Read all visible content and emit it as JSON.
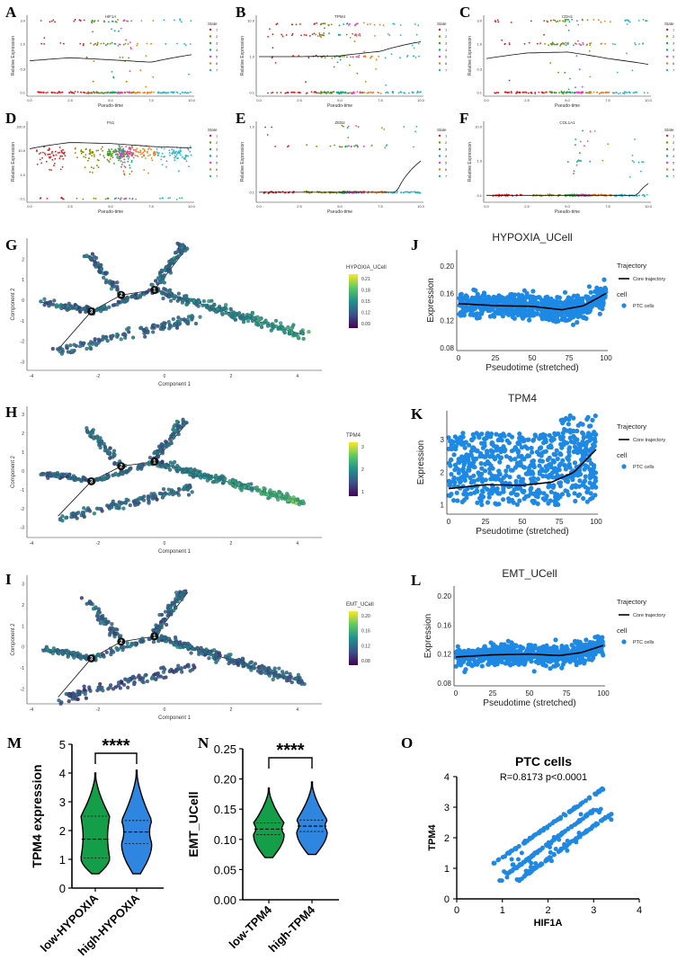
{
  "panels": {
    "A": {
      "letter": "A",
      "title": "HIF1A",
      "xlabel": "Pseudo-time",
      "ylabel": "Relative Expression",
      "yticks": [
        "3.0",
        "1.0",
        "0.3",
        "0.1"
      ],
      "xticks": [
        "0.0",
        "2.5",
        "5.0",
        "7.5",
        "10.0"
      ]
    },
    "B": {
      "letter": "B",
      "title": "TPM4",
      "xlabel": "Pseudo-time",
      "ylabel": "Relative Expression",
      "yticks": [
        "10.0",
        "1.0",
        "0.1"
      ],
      "xticks": [
        "0.0",
        "2.5",
        "5.0",
        "7.5",
        "10.0"
      ]
    },
    "C": {
      "letter": "C",
      "title": "CDH1",
      "xlabel": "Pseudo-time",
      "ylabel": "Relative Expression",
      "yticks": [
        "3.0",
        "1.0",
        "0.3",
        "0.1"
      ],
      "xticks": [
        "0.0",
        "2.5",
        "5.0",
        "7.5",
        "10.0"
      ]
    },
    "D": {
      "letter": "D",
      "title": "FN1",
      "xlabel": "Pseudo-time",
      "ylabel": "Relative Expression",
      "yticks": [
        "100.0",
        "10.0",
        "1.0",
        "0.1"
      ],
      "xticks": [
        "0.0",
        "2.5",
        "5.0",
        "7.5",
        "10.0"
      ]
    },
    "E": {
      "letter": "E",
      "title": "ZEB2",
      "xlabel": "Pseudo-time",
      "ylabel": "Relative Expression",
      "yticks": [
        "1.0",
        "0.1"
      ],
      "xticks": [
        "0.0",
        "2.5",
        "5.0",
        "7.5",
        "10.0"
      ]
    },
    "F": {
      "letter": "F",
      "title": "COL1A1",
      "xlabel": "Pseudo-time",
      "ylabel": "Relative Expression",
      "yticks": [
        "10.0",
        "1.0",
        "0.1"
      ],
      "xticks": [
        "0.0",
        "2.5",
        "5.0",
        "7.5",
        "10.0"
      ]
    },
    "G": {
      "letter": "G",
      "xlabel": "Component 1",
      "ylabel": "Component 2",
      "legend_title": "HYPOXIA_UCell",
      "legend_ticks": [
        "0.21",
        "0.18",
        "0.15",
        "0.12",
        "0.09"
      ],
      "xticks": [
        "-4",
        "-2",
        "0",
        "2",
        "4"
      ],
      "yticks": [
        "2",
        "1",
        "0",
        "-1",
        "-2",
        "-3"
      ]
    },
    "H": {
      "letter": "H",
      "xlabel": "Component 1",
      "ylabel": "Component 2",
      "legend_title": "TPM4",
      "legend_ticks": [
        "3",
        "2",
        "1"
      ],
      "xticks": [
        "-4",
        "-2",
        "0",
        "2",
        "4"
      ],
      "yticks": [
        "3",
        "2",
        "1",
        "0",
        "-1",
        "-2",
        "-3"
      ]
    },
    "I": {
      "letter": "I",
      "xlabel": "Component 1",
      "ylabel": "Component 2",
      "legend_title": "EMT_UCell",
      "legend_ticks": [
        "0.20",
        "0.16",
        "0.12",
        "0.08"
      ],
      "xticks": [
        "-4",
        "-2",
        "0",
        "2",
        "4"
      ],
      "yticks": [
        "3",
        "2",
        "1",
        "0",
        "-1",
        "-2"
      ]
    },
    "J": {
      "letter": "J",
      "title": "HYPOXIA_UCell",
      "xlabel": "Pseudotime (stretched)",
      "ylabel": "Expression",
      "yticks": [
        "0.20",
        "0.16",
        "0.12",
        "0.08"
      ],
      "xticks": [
        "0",
        "25",
        "50",
        "75",
        "100"
      ]
    },
    "K": {
      "letter": "K",
      "title": "TPM4",
      "xlabel": "Pseudotime (stretched)",
      "ylabel": "Expression",
      "yticks": [
        "3",
        "2",
        "1"
      ],
      "xticks": [
        "0",
        "25",
        "50",
        "75",
        "100"
      ]
    },
    "L": {
      "letter": "L",
      "title": "EMT_UCell",
      "xlabel": "Pseudotime (stretched)",
      "ylabel": "Expression",
      "yticks": [
        "0.20",
        "0.16",
        "0.12",
        "0.08"
      ],
      "xticks": [
        "0",
        "25",
        "50",
        "75",
        "100"
      ]
    },
    "M": {
      "letter": "M",
      "ylabel": "TPM4 expression",
      "categories": [
        "low-HYPOXIA",
        "high-HYPOXIA"
      ],
      "yticks": [
        "5",
        "4",
        "3",
        "2",
        "1",
        "0"
      ],
      "significance": "****"
    },
    "N": {
      "letter": "N",
      "ylabel": "EMT_UCell",
      "categories": [
        "low-TPM4",
        "high-TPM4"
      ],
      "yticks": [
        "0.25",
        "0.20",
        "0.15",
        "0.10",
        "0.05",
        "0.00"
      ],
      "significance": "****"
    },
    "O": {
      "letter": "O",
      "title": "PTC cells",
      "stats": "R=0.8173    p<0.0001",
      "xlabel": "HIF1A",
      "ylabel": "TPM4",
      "xticks": [
        "0",
        "1",
        "2",
        "3",
        "4"
      ],
      "yticks": [
        "4",
        "3",
        "2",
        "1",
        "0"
      ]
    }
  },
  "state_legend": {
    "title": "State",
    "labels": [
      "1",
      "2",
      "3",
      "4",
      "5",
      "6",
      "7"
    ],
    "colors": [
      "#e41a1c",
      "#8a8a00",
      "#2ca02c",
      "#17a589",
      "#ff33cc",
      "#ee7d1c",
      "#26b5c9"
    ]
  },
  "trajectory_legend": {
    "title": "Trajectory",
    "line_label": "Core trajectory",
    "cell_title": "cell",
    "cell_label": "PTC cells"
  },
  "colors": {
    "point_blue": "#1e88e5",
    "violin_green": "#159e4a",
    "violin_blue": "#2f86e0",
    "viridis": [
      "#440154",
      "#3b528b",
      "#21908d",
      "#5dc963",
      "#fde725"
    ]
  },
  "chart_data": [
    {
      "panel": "A",
      "type": "scatter",
      "title": "HIF1A",
      "xlabel": "Pseudo-time",
      "ylabel": "Relative Expression",
      "y_scale": "log",
      "xlim": [
        0,
        10
      ],
      "ylim": [
        0.1,
        3
      ],
      "series": [
        {
          "name": "State",
          "smooth": [
            [
              0,
              0.45
            ],
            [
              2.5,
              0.52
            ],
            [
              5,
              0.47
            ],
            [
              7.5,
              0.42
            ],
            [
              10,
              0.6
            ]
          ]
        }
      ]
    },
    {
      "panel": "B",
      "type": "scatter",
      "title": "TPM4",
      "xlabel": "Pseudo-time",
      "ylabel": "Relative Expression",
      "y_scale": "log",
      "xlim": [
        0,
        10
      ],
      "ylim": [
        0.1,
        10
      ],
      "series": [
        {
          "name": "State",
          "smooth": [
            [
              0,
              1.0
            ],
            [
              2.5,
              1.0
            ],
            [
              5,
              1.05
            ],
            [
              7.5,
              1.4
            ],
            [
              10,
              2.6
            ]
          ]
        }
      ]
    },
    {
      "panel": "C",
      "type": "scatter",
      "title": "CDH1",
      "xlabel": "Pseudo-time",
      "ylabel": "Relative Expression",
      "y_scale": "log",
      "xlim": [
        0,
        10
      ],
      "ylim": [
        0.1,
        3
      ],
      "series": [
        {
          "name": "State",
          "smooth": [
            [
              0,
              0.5
            ],
            [
              2.5,
              0.65
            ],
            [
              5,
              0.68
            ],
            [
              7.5,
              0.5
            ],
            [
              10,
              0.38
            ]
          ]
        }
      ]
    },
    {
      "panel": "D",
      "type": "scatter",
      "title": "FN1",
      "xlabel": "Pseudo-time",
      "ylabel": "Relative Expression",
      "y_scale": "log",
      "xlim": [
        0,
        10
      ],
      "ylim": [
        0.1,
        100
      ],
      "series": [
        {
          "name": "State",
          "smooth": [
            [
              0,
              12
            ],
            [
              2.5,
              22
            ],
            [
              5,
              20
            ],
            [
              7.5,
              15
            ],
            [
              10,
              13
            ]
          ]
        }
      ]
    },
    {
      "panel": "E",
      "type": "scatter",
      "title": "ZEB2",
      "xlabel": "Pseudo-time",
      "ylabel": "Relative Expression",
      "y_scale": "log",
      "xlim": [
        0,
        10
      ],
      "ylim": [
        0.08,
        1
      ],
      "series": [
        {
          "name": "State",
          "smooth": [
            [
              0,
              0.1
            ],
            [
              5,
              0.1
            ],
            [
              8.5,
              0.1
            ],
            [
              10,
              0.3
            ]
          ]
        }
      ]
    },
    {
      "panel": "F",
      "type": "scatter",
      "title": "COL1A1",
      "xlabel": "Pseudo-time",
      "ylabel": "Relative Expression",
      "y_scale": "log",
      "xlim": [
        0,
        10
      ],
      "ylim": [
        0.08,
        10
      ],
      "series": [
        {
          "name": "State",
          "smooth": [
            [
              0,
              0.1
            ],
            [
              5,
              0.1
            ],
            [
              9.3,
              0.1
            ],
            [
              10,
              0.22
            ]
          ]
        }
      ]
    },
    {
      "panel": "J",
      "type": "scatter",
      "title": "HYPOXIA_UCell",
      "xlabel": "Pseudotime (stretched)",
      "ylabel": "Expression",
      "xlim": [
        0,
        100
      ],
      "ylim": [
        0.08,
        0.22
      ],
      "series": [
        {
          "name": "Core trajectory",
          "smooth": [
            [
              0,
              0.145
            ],
            [
              25,
              0.142
            ],
            [
              50,
              0.141
            ],
            [
              70,
              0.136
            ],
            [
              85,
              0.142
            ],
            [
              100,
              0.16
            ]
          ]
        }
      ]
    },
    {
      "panel": "K",
      "type": "scatter",
      "title": "TPM4",
      "xlabel": "Pseudotime (stretched)",
      "ylabel": "Expression",
      "xlim": [
        0,
        100
      ],
      "ylim": [
        0.8,
        3.8
      ],
      "series": [
        {
          "name": "Core trajectory",
          "smooth": [
            [
              0,
              1.5
            ],
            [
              25,
              1.62
            ],
            [
              50,
              1.6
            ],
            [
              70,
              1.7
            ],
            [
              85,
              2.0
            ],
            [
              100,
              2.7
            ]
          ]
        }
      ]
    },
    {
      "panel": "L",
      "type": "scatter",
      "title": "EMT_UCell",
      "xlabel": "Pseudotime (stretched)",
      "ylabel": "Expression",
      "xlim": [
        0,
        100
      ],
      "ylim": [
        0.08,
        0.21
      ],
      "series": [
        {
          "name": "Core trajectory",
          "smooth": [
            [
              0,
              0.116
            ],
            [
              25,
              0.119
            ],
            [
              50,
              0.12
            ],
            [
              70,
              0.118
            ],
            [
              85,
              0.122
            ],
            [
              100,
              0.132
            ]
          ]
        }
      ]
    },
    {
      "panel": "M",
      "type": "violin",
      "ylabel": "TPM4 expression",
      "categories": [
        "low-HYPOXIA",
        "high-HYPOXIA"
      ],
      "ylim": [
        0,
        5
      ],
      "series": [
        {
          "values": [
            {
              "min": 0.5,
              "q1": 1.05,
              "median": 1.7,
              "q3": 2.5,
              "max": 4.0
            },
            {
              "min": 0.5,
              "q1": 1.55,
              "median": 1.95,
              "q3": 2.35,
              "max": 4.1
            }
          ]
        }
      ]
    },
    {
      "panel": "N",
      "type": "violin",
      "ylabel": "EMT_UCell",
      "categories": [
        "low-TPM4",
        "high-TPM4"
      ],
      "ylim": [
        0,
        0.25
      ],
      "series": [
        {
          "values": [
            {
              "min": 0.07,
              "q1": 0.108,
              "median": 0.117,
              "q3": 0.127,
              "max": 0.185
            },
            {
              "min": 0.075,
              "q1": 0.113,
              "median": 0.122,
              "q3": 0.132,
              "max": 0.195
            }
          ]
        }
      ]
    },
    {
      "panel": "O",
      "type": "scatter",
      "title": "PTC cells",
      "xlabel": "HIF1A",
      "ylabel": "TPM4",
      "xlim": [
        0,
        4
      ],
      "ylim": [
        0,
        4
      ],
      "series": [
        {
          "name": "PTC cells",
          "bands": [
            [
              [
                0.8,
                1.15
              ],
              [
                3.2,
                3.6
              ]
            ],
            [
              [
                1.1,
                0.8
              ],
              [
                3.0,
                2.9
              ]
            ],
            [
              [
                1.3,
                0.55
              ],
              [
                3.4,
                2.8
              ]
            ]
          ]
        }
      ]
    }
  ]
}
